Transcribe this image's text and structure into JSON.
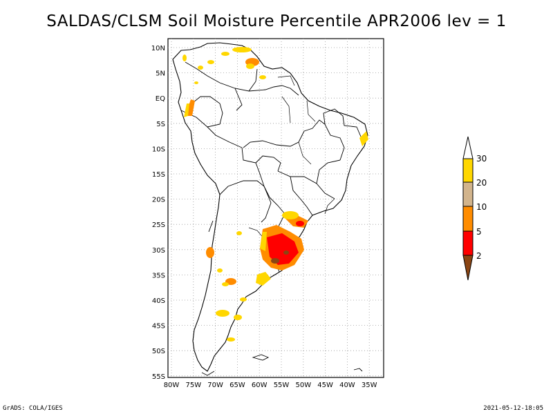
{
  "title": "SALDAS/CLSM Soil Moisture Percentile APR2006 lev = 1",
  "map": {
    "lat_ticks": [
      "10N",
      "5N",
      "EQ",
      "5S",
      "10S",
      "15S",
      "20S",
      "25S",
      "30S",
      "35S",
      "40S",
      "45S",
      "50S",
      "55S"
    ],
    "lon_ticks": [
      "80W",
      "75W",
      "70W",
      "65W",
      "60W",
      "55W",
      "50W",
      "45W",
      "40W",
      "35W"
    ],
    "lat_range": [
      10,
      -55
    ],
    "lon_range": [
      -80,
      -33
    ],
    "grid": true
  },
  "legend": {
    "labels": [
      "2",
      "5",
      "10",
      "20",
      "30"
    ],
    "bins": [
      {
        "range": "<2",
        "color": "#8B4513"
      },
      {
        "range": "2-5",
        "color": "#FF0000"
      },
      {
        "range": "5-10",
        "color": "#FF8C00"
      },
      {
        "range": "10-20",
        "color": "#D2B48C"
      },
      {
        "range": "20-30",
        "color": "#FFD700"
      },
      {
        "range": ">30",
        "color": "#FFFFFF"
      }
    ]
  },
  "colors": {
    "brown": "#8B4513",
    "red": "#FF0000",
    "orange": "#FF8C00",
    "tan": "#D2B48C",
    "yellow": "#FFD700"
  },
  "footer": {
    "left": "GrADS: COLA/IGES",
    "right": "2021-05-12-18:05"
  }
}
